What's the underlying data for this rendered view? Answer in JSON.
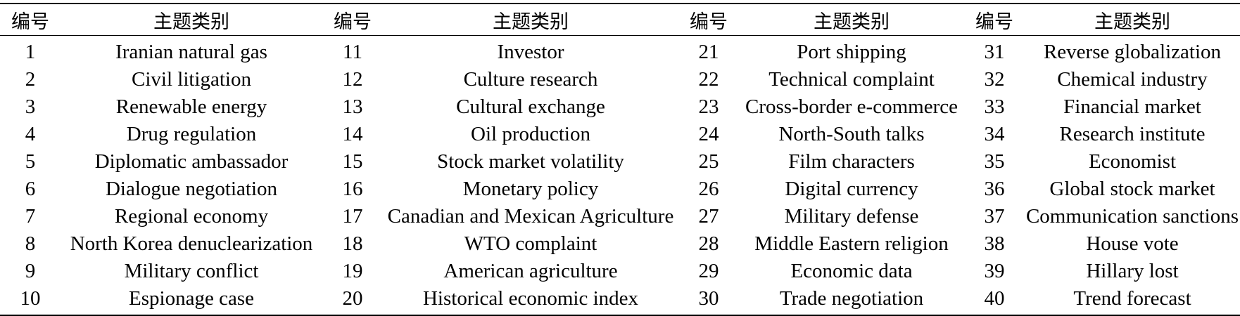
{
  "headers": {
    "number": "编号",
    "topic": "主题类别"
  },
  "rows": [
    [
      {
        "n": "1",
        "t": "Iranian natural gas"
      },
      {
        "n": "11",
        "t": "Investor"
      },
      {
        "n": "21",
        "t": "Port shipping"
      },
      {
        "n": "31",
        "t": "Reverse globalization"
      }
    ],
    [
      {
        "n": "2",
        "t": "Civil litigation"
      },
      {
        "n": "12",
        "t": "Culture research"
      },
      {
        "n": "22",
        "t": "Technical complaint"
      },
      {
        "n": "32",
        "t": "Chemical industry"
      }
    ],
    [
      {
        "n": "3",
        "t": "Renewable energy"
      },
      {
        "n": "13",
        "t": "Cultural exchange"
      },
      {
        "n": "23",
        "t": "Cross-border e-commerce"
      },
      {
        "n": "33",
        "t": "Financial market"
      }
    ],
    [
      {
        "n": "4",
        "t": "Drug regulation"
      },
      {
        "n": "14",
        "t": "Oil production"
      },
      {
        "n": "24",
        "t": "North-South talks"
      },
      {
        "n": "34",
        "t": "Research institute"
      }
    ],
    [
      {
        "n": "5",
        "t": "Diplomatic ambassador"
      },
      {
        "n": "15",
        "t": "Stock market volatility"
      },
      {
        "n": "25",
        "t": "Film characters"
      },
      {
        "n": "35",
        "t": "Economist"
      }
    ],
    [
      {
        "n": "6",
        "t": "Dialogue negotiation"
      },
      {
        "n": "16",
        "t": "Monetary policy"
      },
      {
        "n": "26",
        "t": "Digital currency"
      },
      {
        "n": "36",
        "t": "Global stock market"
      }
    ],
    [
      {
        "n": "7",
        "t": "Regional economy"
      },
      {
        "n": "17",
        "t": "Canadian and Mexican Agriculture"
      },
      {
        "n": "27",
        "t": "Military defense"
      },
      {
        "n": "37",
        "t": "Communication sanctions"
      }
    ],
    [
      {
        "n": "8",
        "t": "North Korea denuclearization"
      },
      {
        "n": "18",
        "t": "WTO complaint"
      },
      {
        "n": "28",
        "t": "Middle Eastern religion"
      },
      {
        "n": "38",
        "t": "House vote"
      }
    ],
    [
      {
        "n": "9",
        "t": "Military conflict"
      },
      {
        "n": "19",
        "t": "American agriculture"
      },
      {
        "n": "29",
        "t": "Economic data"
      },
      {
        "n": "39",
        "t": "Hillary lost"
      }
    ],
    [
      {
        "n": "10",
        "t": "Espionage case"
      },
      {
        "n": "20",
        "t": "Historical economic index"
      },
      {
        "n": "30",
        "t": "Trade negotiation"
      },
      {
        "n": "40",
        "t": "Trend forecast"
      }
    ]
  ]
}
